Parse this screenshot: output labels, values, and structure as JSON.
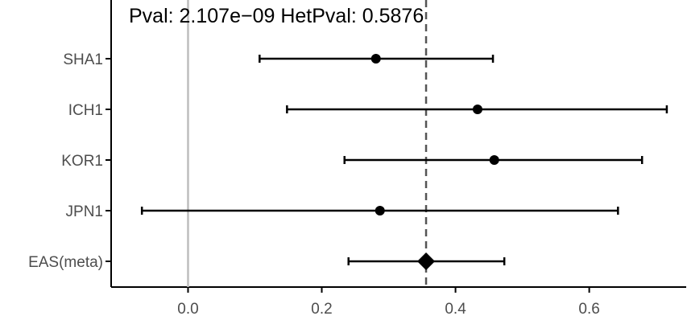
{
  "chart_data": {
    "type": "forest",
    "title": "Pval: 2.107e−09 HetPval: 0.5876",
    "xlabel": "",
    "ylabel": "",
    "xlim": [
      -0.115,
      0.745
    ],
    "xticks": [
      0.0,
      0.2,
      0.4,
      0.6
    ],
    "xtick_labels": [
      "0.0",
      "0.2",
      "0.4",
      "0.6"
    ],
    "reference_line": 0.0,
    "meta_line": 0.356,
    "studies": [
      {
        "label": "SHA1",
        "estimate": 0.281,
        "lower": 0.107,
        "upper": 0.456
      },
      {
        "label": "ICH1",
        "estimate": 0.433,
        "lower": 0.148,
        "upper": 0.716
      },
      {
        "label": "KOR1",
        "estimate": 0.458,
        "lower": 0.234,
        "upper": 0.679
      },
      {
        "label": "JPN1",
        "estimate": 0.287,
        "lower": -0.069,
        "upper": 0.643
      }
    ],
    "meta": {
      "label": "EAS(meta)",
      "estimate": 0.356,
      "lower": 0.24,
      "upper": 0.473
    },
    "grid": false,
    "legend": "none"
  }
}
